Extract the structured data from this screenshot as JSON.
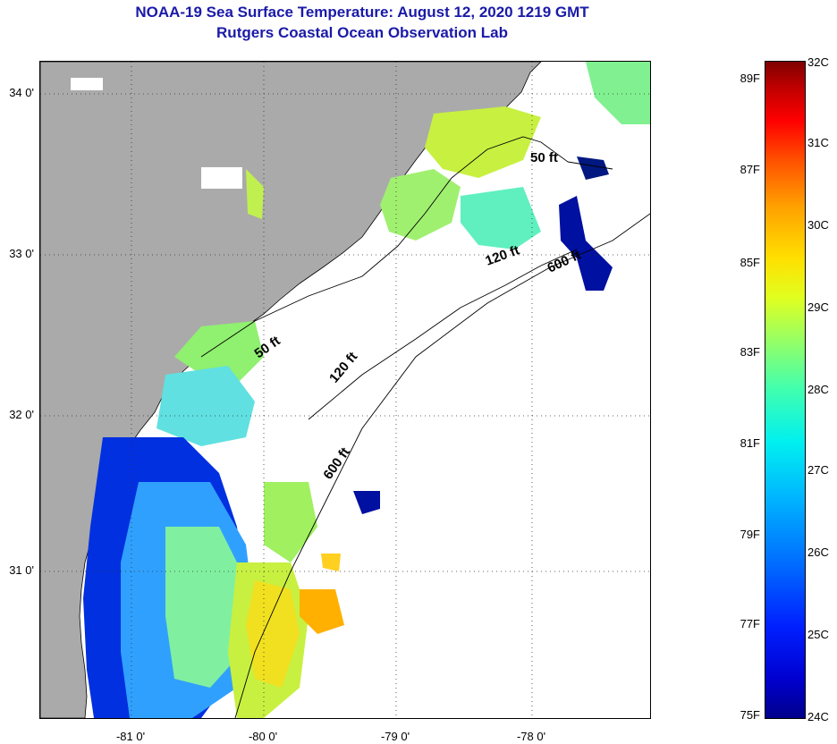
{
  "title": "NOAA-19 Sea Surface Temperature:  August 12, 2020 1219 GMT",
  "subtitle": "Rutgers Coastal Ocean Observation Lab",
  "map": {
    "lat_ticks": [
      "34 0'",
      "33 0'",
      "32 0'",
      "31 0'"
    ],
    "lon_ticks": [
      "-81 0'",
      "-80 0'",
      "-79 0'",
      "-78 0'"
    ],
    "contour_labels": [
      "50 ft",
      "120 ft",
      "600 ft",
      "50 ft",
      "120 ft",
      "600 ft"
    ],
    "land_color": "#aaaaaa",
    "coastline_color": "#000000"
  },
  "colorbar": {
    "fahrenheit_labels": [
      "89F",
      "87F",
      "85F",
      "83F",
      "81F",
      "79F",
      "77F",
      "75F"
    ],
    "celsius_labels": [
      "32C",
      "31C",
      "30C",
      "29C",
      "28C",
      "27C",
      "26C",
      "25C",
      "24C"
    ],
    "colors": {
      "min": "#00008b",
      "mid": "#00f0f0",
      "max": "#800000"
    }
  }
}
